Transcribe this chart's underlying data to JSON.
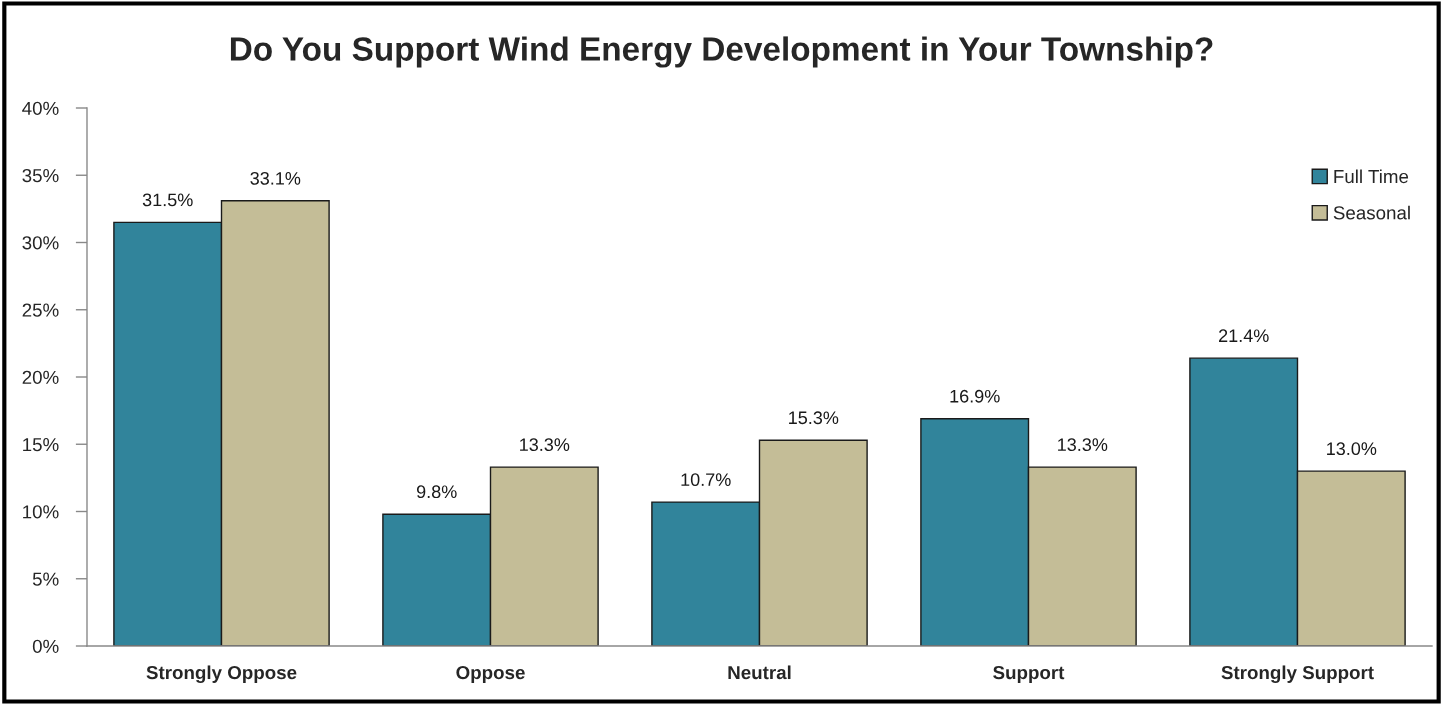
{
  "chart_data": {
    "type": "bar",
    "title": "Do You Support Wind Energy Development in Your Township?",
    "categories": [
      "Strongly Oppose",
      "Oppose",
      "Neutral",
      "Support",
      "Strongly Support"
    ],
    "series": [
      {
        "name": "Full Time",
        "color": "#31849b",
        "values": [
          31.5,
          9.8,
          10.7,
          16.9,
          21.4
        ],
        "value_labels": [
          "31.5%",
          "9.8%",
          "10.7%",
          "16.9%",
          "21.4%"
        ]
      },
      {
        "name": "Seasonal",
        "color": "#c4bd97",
        "values": [
          33.1,
          13.3,
          15.3,
          13.3,
          13.0
        ],
        "value_labels": [
          "33.1%",
          "13.3%",
          "15.3%",
          "13.3%",
          "13.0%"
        ]
      }
    ],
    "ylim": [
      0,
      40
    ],
    "yticks": [
      {
        "value": 0,
        "label": "0%"
      },
      {
        "value": 5,
        "label": "5%"
      },
      {
        "value": 10,
        "label": "10%"
      },
      {
        "value": 15,
        "label": "15%"
      },
      {
        "value": 20,
        "label": "20%"
      },
      {
        "value": 25,
        "label": "25%"
      },
      {
        "value": 30,
        "label": "30%"
      },
      {
        "value": 35,
        "label": "35%"
      },
      {
        "value": 40,
        "label": "40%"
      }
    ],
    "grid": false,
    "legend": "top right"
  }
}
